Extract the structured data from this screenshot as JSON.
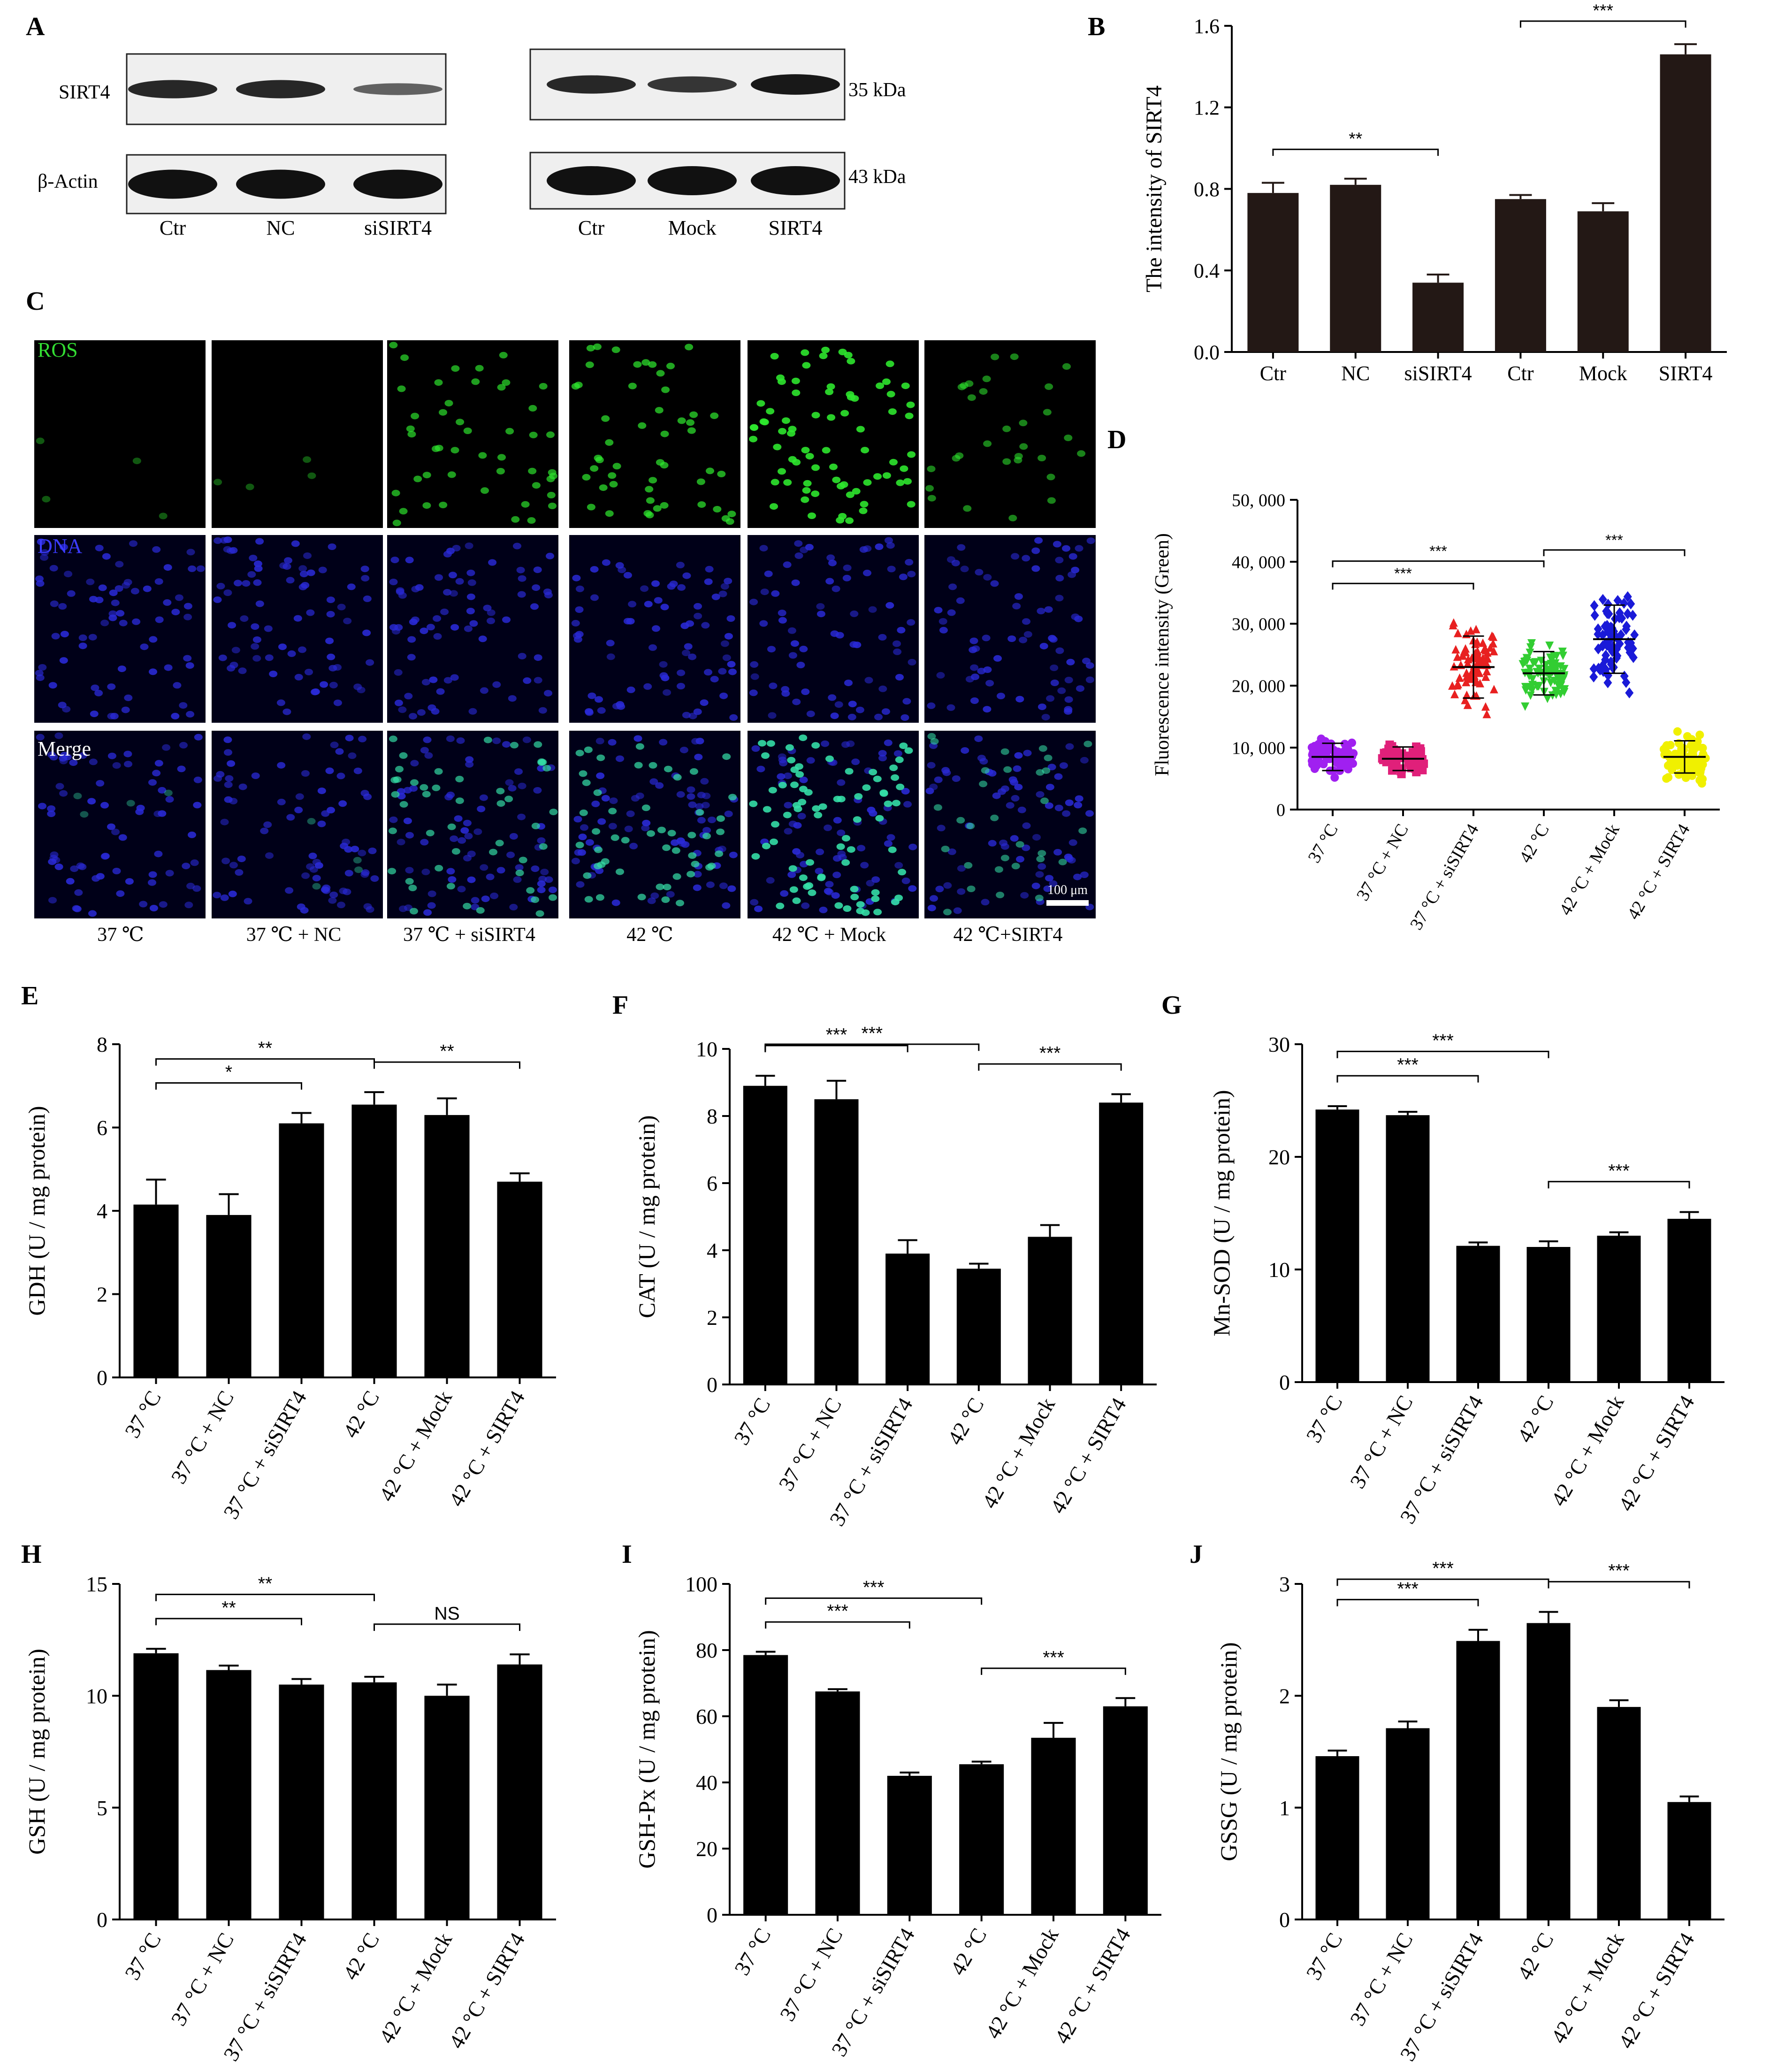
{
  "panel_labels": {
    "A": "A",
    "B": "B",
    "C": "C",
    "D": "D",
    "E": "E",
    "F": "F",
    "G": "G",
    "H": "H",
    "I": "I",
    "J": "J"
  },
  "blot": {
    "row_labels": [
      "SIRT4",
      "β-Actin"
    ],
    "left_lanes": [
      "Ctr",
      "NC",
      "siSIRT4"
    ],
    "right_lanes": [
      "Ctr",
      "Mock",
      "SIRT4"
    ],
    "kda": [
      "35 kDa",
      "43 kDa"
    ],
    "left_intensity": [
      [
        0.85,
        0.85,
        0.45
      ],
      [
        1.0,
        1.0,
        1.0
      ]
    ],
    "right_intensity": [
      [
        0.85,
        0.75,
        0.95
      ],
      [
        1.0,
        1.0,
        1.0
      ]
    ]
  },
  "micro": {
    "row_labels": [
      "ROS",
      "DNA",
      "Merge"
    ],
    "col_labels": [
      "37 ℃",
      "37 ℃ + NC",
      "37 ℃ + siSIRT4",
      "42 ℃",
      "42 ℃ + Mock",
      "42 ℃+SIRT4"
    ],
    "scale_bar": "100 μm",
    "ros_level": [
      0.05,
      0.05,
      0.55,
      0.6,
      0.9,
      0.35
    ]
  },
  "chart_data": [
    {
      "id": "B",
      "type": "bar",
      "ylabel": "The intensity of SIRT4",
      "categories": [
        "Ctr",
        "NC",
        "siSIRT4",
        "Ctr",
        "Mock",
        "SIRT4"
      ],
      "values": [
        0.78,
        0.82,
        0.34,
        0.75,
        0.69,
        1.46
      ],
      "errors": [
        0.05,
        0.03,
        0.04,
        0.02,
        0.04,
        0.05
      ],
      "ylim": [
        0,
        1.6
      ],
      "yticks": [
        0,
        0.4,
        0.8,
        1.2,
        1.6
      ],
      "ytick_labels": [
        "0.0",
        "0.4",
        "0.8",
        "1.2",
        "1.6"
      ],
      "bar_color": "#231815",
      "sig": [
        {
          "from": 0,
          "to": 2,
          "label": "**"
        },
        {
          "from": 3,
          "to": 5,
          "label": "***"
        }
      ]
    },
    {
      "id": "D",
      "type": "scatter",
      "ylabel": "Fluorescence intensity (Green)",
      "categories": [
        "37 °C",
        "37 °C + NC",
        "37 °C + siSIRT4",
        "42 °C",
        "42 °C + Mock",
        "42 °C + SIRT4"
      ],
      "means": [
        8500,
        8200,
        23000,
        22000,
        27500,
        8500
      ],
      "sds": [
        2200,
        1900,
        5000,
        3500,
        5500,
        2600
      ],
      "colors": [
        "#a020f0",
        "#e0207a",
        "#e82020",
        "#32cd32",
        "#1a1ad8",
        "#f0f000"
      ],
      "markers": [
        "circle",
        "square",
        "triangle",
        "triangle-down",
        "diamond",
        "circle"
      ],
      "n": [
        70,
        60,
        75,
        80,
        70,
        80
      ],
      "ylim": [
        0,
        50000
      ],
      "yticks": [
        0,
        10000,
        20000,
        30000,
        40000,
        50000
      ],
      "ytick_labels": [
        "0",
        "10, 000",
        "20, 000",
        "30, 000",
        "40, 000",
        "50, 000"
      ],
      "sig": [
        {
          "from": 0,
          "to": 2,
          "label": "***"
        },
        {
          "from": 0,
          "to": 3,
          "label": "***"
        },
        {
          "from": 3,
          "to": 5,
          "label": "***"
        }
      ]
    },
    {
      "id": "E",
      "type": "bar",
      "ylabel": "GDH (U / mg protein)",
      "categories": [
        "37 °C",
        "37 °C + NC",
        "37 °C + siSIRT4",
        "42 °C",
        "42 °C + Mock",
        "42 °C + SIRT4"
      ],
      "values": [
        4.15,
        3.9,
        6.1,
        6.55,
        6.3,
        4.7
      ],
      "errors": [
        0.6,
        0.5,
        0.25,
        0.3,
        0.4,
        0.2
      ],
      "ylim": [
        0,
        8
      ],
      "yticks": [
        0,
        2,
        4,
        6,
        8
      ],
      "ytick_labels": [
        "0",
        "2",
        "4",
        "6",
        "8"
      ],
      "bar_color": "#000000",
      "sig": [
        {
          "from": 0,
          "to": 2,
          "label": "*"
        },
        {
          "from": 0,
          "to": 3,
          "label": "**"
        },
        {
          "from": 3,
          "to": 5,
          "label": "**"
        }
      ]
    },
    {
      "id": "F",
      "type": "bar",
      "ylabel": "CAT (U / mg protein)",
      "categories": [
        "37 °C",
        "37 °C + NC",
        "37 °C + siSIRT4",
        "42 °C",
        "42 °C + Mock",
        "42 °C + SIRT4"
      ],
      "values": [
        8.9,
        8.5,
        3.9,
        3.45,
        4.4,
        8.4
      ],
      "errors": [
        0.3,
        0.55,
        0.4,
        0.15,
        0.35,
        0.25
      ],
      "ylim": [
        0,
        10
      ],
      "yticks": [
        0,
        2,
        4,
        6,
        8,
        10
      ],
      "ytick_labels": [
        "0",
        "2",
        "4",
        "6",
        "8",
        "10"
      ],
      "bar_color": "#000000",
      "sig": [
        {
          "from": 0,
          "to": 2,
          "label": "***"
        },
        {
          "from": 0,
          "to": 3,
          "label": "***"
        },
        {
          "from": 3,
          "to": 5,
          "label": "***"
        }
      ]
    },
    {
      "id": "G",
      "type": "bar",
      "ylabel": "Mn-SOD (U / mg protein)",
      "categories": [
        "37 °C",
        "37 °C + NC",
        "37 °C + siSIRT4",
        "42 °C",
        "42 °C + Mock",
        "42 °C + SIRT4"
      ],
      "values": [
        24.2,
        23.7,
        12.1,
        12.0,
        13.0,
        14.5
      ],
      "errors": [
        0.3,
        0.3,
        0.3,
        0.5,
        0.3,
        0.6
      ],
      "ylim": [
        0,
        30
      ],
      "yticks": [
        0,
        10,
        20,
        30
      ],
      "ytick_labels": [
        "0",
        "10",
        "20",
        "30"
      ],
      "bar_color": "#000000",
      "sig": [
        {
          "from": 0,
          "to": 2,
          "label": "***"
        },
        {
          "from": 0,
          "to": 3,
          "label": "***"
        },
        {
          "from": 3,
          "to": 5,
          "label": "***"
        }
      ]
    },
    {
      "id": "H",
      "type": "bar",
      "ylabel": "GSH (U / mg protein)",
      "categories": [
        "37 °C",
        "37 °C + NC",
        "37 °C + siSIRT4",
        "42 °C",
        "42 °C + Mock",
        "42 °C + SIRT4"
      ],
      "values": [
        11.9,
        11.15,
        10.5,
        10.6,
        10.0,
        11.4
      ],
      "errors": [
        0.2,
        0.2,
        0.25,
        0.25,
        0.5,
        0.45
      ],
      "ylim": [
        0,
        15
      ],
      "yticks": [
        0,
        5,
        10,
        15
      ],
      "ytick_labels": [
        "0",
        "5",
        "10",
        "15"
      ],
      "bar_color": "#000000",
      "sig": [
        {
          "from": 0,
          "to": 2,
          "label": "**"
        },
        {
          "from": 0,
          "to": 3,
          "label": "**"
        },
        {
          "from": 3,
          "to": 5,
          "label": "NS"
        }
      ]
    },
    {
      "id": "I",
      "type": "bar",
      "ylabel": "GSH-Px (U / mg protein)",
      "categories": [
        "37 °C",
        "37 °C + NC",
        "37 °C + siSIRT4",
        "42 °C",
        "42 °C + Mock",
        "42 °C + SIRT4"
      ],
      "values": [
        78.5,
        67.5,
        42.0,
        45.5,
        53.5,
        63.0
      ],
      "errors": [
        1.0,
        0.7,
        1.0,
        0.8,
        4.5,
        2.5
      ],
      "ylim": [
        0,
        100
      ],
      "yticks": [
        0,
        20,
        40,
        60,
        80,
        100
      ],
      "ytick_labels": [
        "0",
        "20",
        "40",
        "60",
        "80",
        "100"
      ],
      "bar_color": "#000000",
      "sig": [
        {
          "from": 0,
          "to": 2,
          "label": "***"
        },
        {
          "from": 0,
          "to": 3,
          "label": "***"
        },
        {
          "from": 3,
          "to": 5,
          "label": "***"
        }
      ]
    },
    {
      "id": "J",
      "type": "bar",
      "ylabel": "GSSG (U / mg protein)",
      "categories": [
        "37 °C",
        "37 °C + NC",
        "37 °C + siSIRT4",
        "42 °C",
        "42 °C + Mock",
        "42 °C + SIRT4"
      ],
      "values": [
        1.46,
        1.71,
        2.49,
        2.65,
        1.9,
        1.05
      ],
      "errors": [
        0.05,
        0.06,
        0.1,
        0.1,
        0.06,
        0.05
      ],
      "ylim": [
        0,
        3
      ],
      "yticks": [
        0,
        1,
        2,
        3
      ],
      "ytick_labels": [
        "0",
        "1",
        "2",
        "3"
      ],
      "bar_color": "#000000",
      "sig": [
        {
          "from": 0,
          "to": 2,
          "label": "***"
        },
        {
          "from": 0,
          "to": 3,
          "label": "***"
        },
        {
          "from": 3,
          "to": 5,
          "label": "***"
        }
      ]
    }
  ]
}
